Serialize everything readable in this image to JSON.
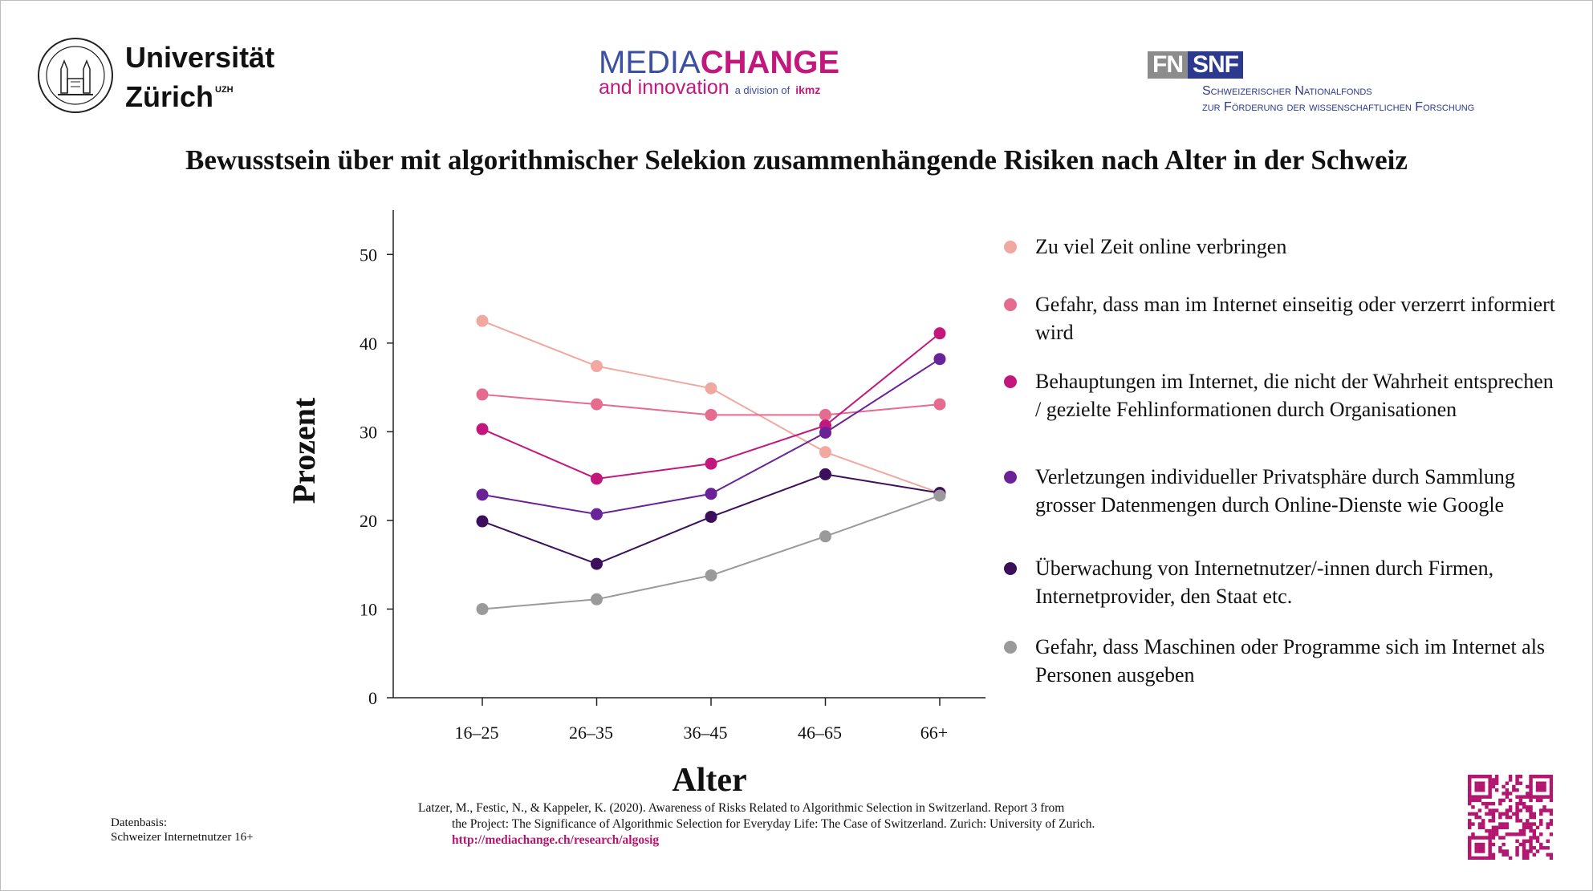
{
  "header": {
    "uzh_line1": "Universität",
    "uzh_line2": "Zürich",
    "uzh_sup": "UZH",
    "mediachange_media": "MEDIA",
    "mediachange_change": "CHANGE",
    "mediachange_and": "and innovation",
    "mediachange_division": "a division of",
    "mediachange_ikmz": "ikmz",
    "snf_fn": "FN",
    "snf_snf": "SNF",
    "snf_line1": "Schweizerischer Nationalfonds",
    "snf_line2": "zur Förderung der wissenschaftlichen Forschung"
  },
  "chart_data": {
    "type": "line",
    "title": "Bewusstsein über mit algorithmischer Selekion zusammenhängende Risiken nach Alter in der Schweiz",
    "xlabel": "Alter",
    "ylabel": "Prozent",
    "categories": [
      "16–25",
      "26–35",
      "36–45",
      "46–65",
      "66+"
    ],
    "ylim": [
      0,
      55
    ],
    "yticks": [
      0,
      10,
      20,
      30,
      40,
      50
    ],
    "grid": false,
    "legend_position": "right",
    "series": [
      {
        "name": "Zu viel Zeit online verbringen",
        "color": "#f0a8a0",
        "values": [
          42.5,
          37.4,
          34.9,
          27.7,
          23.1
        ]
      },
      {
        "name": "Gefahr, dass man im Internet einseitig oder verzerrt informiert wird",
        "color": "#e56b8f",
        "values": [
          34.2,
          33.1,
          31.9,
          31.9,
          33.1
        ]
      },
      {
        "name": "Behauptungen im Internet, die nicht der Wahrheit entsprechen / gezielte Fehlinformationen durch Organisationen",
        "color": "#c2187e",
        "values": [
          30.3,
          24.7,
          26.4,
          30.7,
          41.1
        ]
      },
      {
        "name": "Verletzungen individueller Privatsphäre durch Sammlung grosser Datenmengen durch Online-Dienste wie Google",
        "color": "#6a2298",
        "values": [
          22.9,
          20.7,
          23.0,
          29.9,
          38.2
        ]
      },
      {
        "name": "Überwachung von Internetnutzer/-innen durch Firmen, Internetprovider, den Staat etc.",
        "color": "#3b0f5c",
        "values": [
          19.9,
          15.1,
          20.4,
          25.2,
          23.1
        ]
      },
      {
        "name": "Gefahr, dass Maschinen oder Programme sich im Internet als Personen ausgeben",
        "color": "#9a9a9a",
        "values": [
          10.0,
          11.1,
          13.8,
          18.2,
          22.8
        ]
      }
    ]
  },
  "legend": {
    "items": [
      {
        "label": "Zu viel Zeit online verbringen",
        "color": "#f0a8a0"
      },
      {
        "label": "Gefahr, dass man im Internet einseitig oder verzerrt informiert wird",
        "color": "#e56b8f"
      },
      {
        "label": "Behauptungen im Internet, die nicht der Wahrheit entsprechen / gezielte Fehlinformationen durch Organisationen",
        "color": "#c2187e"
      },
      {
        "label": "Verletzungen individueller Privatsphäre durch Sammlung grosser Datenmengen durch Online-Dienste wie Google",
        "color": "#6a2298"
      },
      {
        "label": "Überwachung von Internetnutzer/-innen durch Firmen, Internetprovider, den Staat etc.",
        "color": "#3b0f5c"
      },
      {
        "label": "Gefahr, dass Maschinen oder Programme sich im Internet als Personen ausgeben",
        "color": "#9a9a9a"
      }
    ]
  },
  "footer": {
    "datenbasis_line1": "Datenbasis:",
    "datenbasis_line2": "Schweizer Internetnutzer 16+",
    "citation_line1": "Latzer, M., Festic, N., & Kappeler, K. (2020). Awareness of Risks Related to Algorithmic Selection in Switzerland. Report 3 from",
    "citation_rest": "the Project: The Significance of Algorithmic Selection for Everyday Life: The Case of Switzerland. Zurich: University of Zurich.",
    "citation_link": "http://mediachange.ch/research/algosig"
  }
}
